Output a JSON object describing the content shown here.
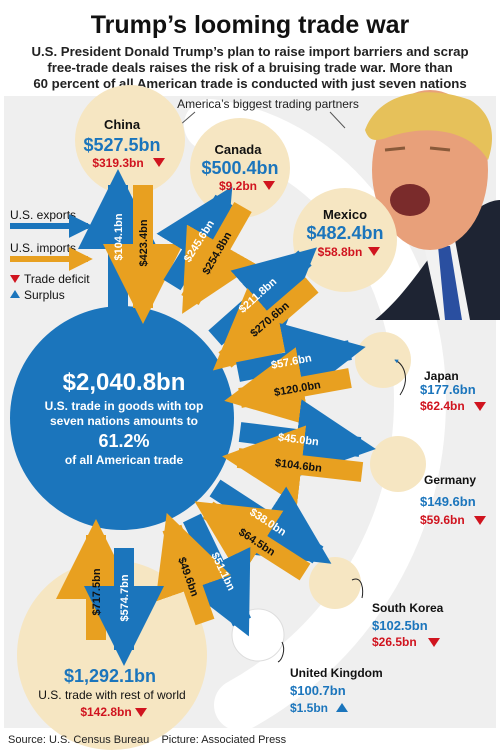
{
  "title": "Trump’s looming trade war",
  "intro": [
    "U.S. President Donald Trump’s plan to raise import barriers and scrap",
    "free-trade deals raises the risk of a bruising trade war. More than",
    "60 percent of all American trade is conducted with just seven nations"
  ],
  "section_label": "America’s biggest trading partners",
  "legend": {
    "exports": "U.S. exports",
    "imports": "U.S. imports",
    "deficit": "Trade deficit",
    "surplus": "Surplus"
  },
  "center": {
    "total": "$2,040.8bn",
    "desc": [
      "U.S. trade in goods with top",
      "seven nations amounts to"
    ],
    "percent": "61.2%",
    "desc2": "of all American trade"
  },
  "rest": {
    "total": "$1,292.1bn",
    "desc": "U.S. trade with rest of world",
    "balance": "$142.8bn",
    "exports": "$574.7bn",
    "imports": "$717.5bn"
  },
  "partners": [
    {
      "name": "China",
      "total": "$527.5bn",
      "balance": "$319.3bn",
      "status": "deficit",
      "exports": "$104.1bn",
      "imports": "$423.4bn"
    },
    {
      "name": "Canada",
      "total": "$500.4bn",
      "balance": "$9.2bn",
      "status": "deficit",
      "exports": "$245.6bn",
      "imports": "$254.8bn"
    },
    {
      "name": "Mexico",
      "total": "$482.4bn",
      "balance": "$58.8bn",
      "status": "deficit",
      "exports": "$211.8bn",
      "imports": "$270.6bn"
    },
    {
      "name": "Japan",
      "total": "$177.6bn",
      "balance": "$62.4bn",
      "status": "deficit",
      "exports": "$57.6bn",
      "imports": "$120.0bn"
    },
    {
      "name": "Germany",
      "total": "$149.6bn",
      "balance": "$59.6bn",
      "status": "deficit",
      "exports": "$45.0bn",
      "imports": "$104.6bn"
    },
    {
      "name": "South Korea",
      "total": "$102.5bn",
      "balance": "$26.5bn",
      "status": "deficit",
      "exports": "$38.0bn",
      "imports": "$64.5bn"
    },
    {
      "name": "United Kingdom",
      "total": "$100.7bn",
      "balance": "$1.5bn",
      "status": "surplus",
      "exports": "$51.1bn",
      "imports": "$49.6bn"
    }
  ],
  "footer": "Source: U.S. Census Bureau    Picture: Associated Press",
  "colors": {
    "export": "#1b75bc",
    "import": "#e8a020",
    "circle": "#f6e6c2",
    "deficit": "#d0141f",
    "surplus": "#1b75bc",
    "panel": "#efefef"
  }
}
